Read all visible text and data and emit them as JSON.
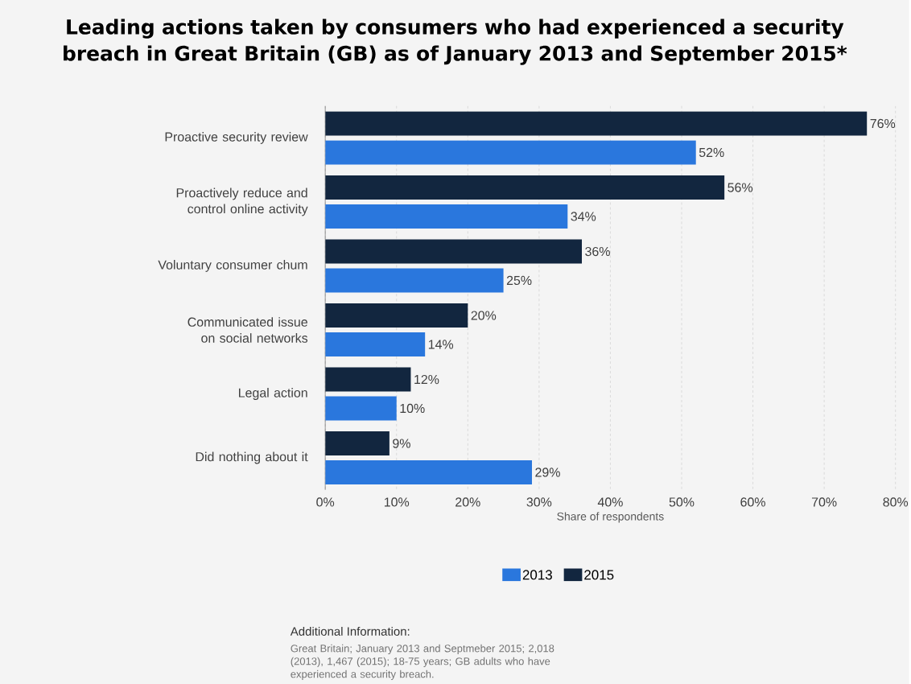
{
  "chart_data": {
    "type": "bar",
    "orientation": "horizontal",
    "title": "Leading actions taken by consumers who had experienced a security breach in Great Britain (GB) as of January 2013 and September 2015*",
    "categories": [
      "Proactive security review",
      "Proactively reduce and control online activity",
      "Voluntary consumer chum",
      "Communicated issue on social networks",
      "Legal action",
      "Did nothing about it"
    ],
    "series": [
      {
        "name": "2013",
        "color": "#2a77dd",
        "values": [
          52,
          34,
          25,
          14,
          10,
          29
        ],
        "value_labels": [
          "52%",
          "34%",
          "25%",
          "14%",
          "10%",
          "29%"
        ]
      },
      {
        "name": "2015",
        "color": "#12263f",
        "values": [
          76,
          56,
          36,
          20,
          12,
          9
        ],
        "value_labels": [
          "76%",
          "56%",
          "36%",
          "20%",
          "12%",
          "9%"
        ]
      }
    ],
    "xlim": [
      0,
      80
    ],
    "xticks": [
      {
        "value": 0,
        "label": "0%"
      },
      {
        "value": 10,
        "label": "10%"
      },
      {
        "value": 20,
        "label": "20%"
      },
      {
        "value": 30,
        "label": "30%"
      },
      {
        "value": 40,
        "label": "40%"
      },
      {
        "value": 50,
        "label": "50%"
      },
      {
        "value": 60,
        "label": "60%"
      },
      {
        "value": 70,
        "label": "70%"
      },
      {
        "value": 80,
        "label": "80%"
      }
    ],
    "xlabel": "Share of respondents",
    "grid": "x",
    "legend": "bottom",
    "annotations": [
      "Additional Information:",
      "Great Britain; January 2013 and Septmeber 2015; 2,018 (2013), 1,467 (2015); 18-75 years; GB adults who have experienced a security breach."
    ]
  }
}
